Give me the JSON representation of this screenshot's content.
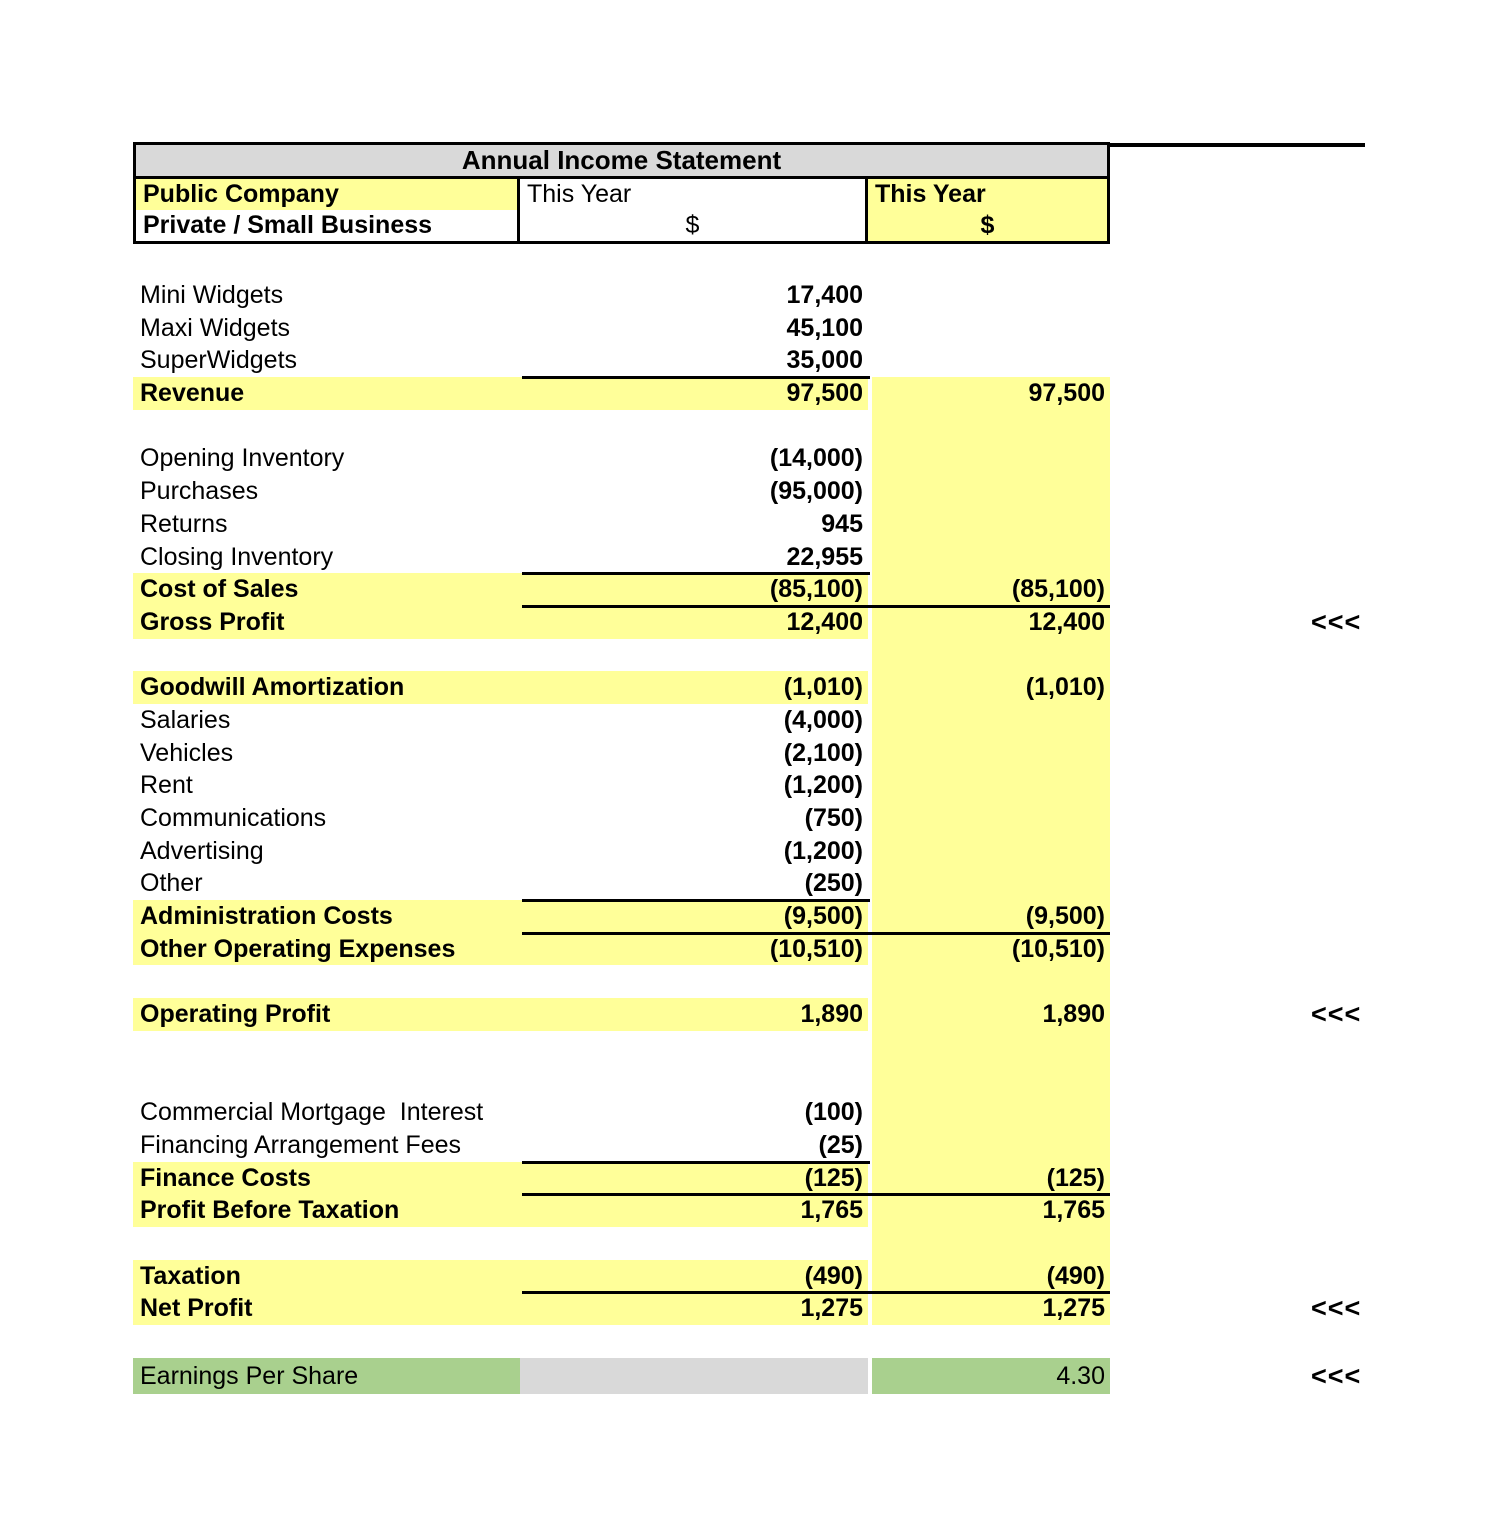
{
  "header": {
    "title": "Annual Income Statement",
    "row1": {
      "col1": "Public Company",
      "col2": "This Year",
      "col3": "This Year"
    },
    "row2": {
      "col1": "Private / Small Business",
      "col2": "$",
      "col3": "$"
    }
  },
  "marker_symbol": "<<<",
  "colors": {
    "highlight_yellow": "#FFFF99",
    "header_gray": "#D9D9D9",
    "eps_green": "#A9D08E",
    "eps_gray": "#D9D9D9",
    "rule_black": "#000000"
  },
  "rows": [
    {
      "blank": true,
      "h": 36
    },
    {
      "label": "Mini Widgets",
      "v1": "17,400",
      "v2": ""
    },
    {
      "label": "Maxi Widgets",
      "v1": "45,100",
      "v2": ""
    },
    {
      "label": "SuperWidgets",
      "v1": "35,000",
      "v2": ""
    },
    {
      "label": "Revenue",
      "v1": "97,500",
      "v2": "97,500",
      "hl": true,
      "rule": "col2"
    },
    {
      "blank": true
    },
    {
      "label": "Opening Inventory",
      "v1": "(14,000)",
      "v2": ""
    },
    {
      "label": "Purchases",
      "v1": "(95,000)",
      "v2": ""
    },
    {
      "label": "Returns",
      "v1": "945",
      "v2": ""
    },
    {
      "label": "Closing Inventory",
      "v1": "22,955",
      "v2": ""
    },
    {
      "label": "Cost of Sales",
      "v1": "(85,100)",
      "v2": "(85,100)",
      "hl": true,
      "rule": "col2"
    },
    {
      "label": "Gross Profit",
      "v1": "12,400",
      "v2": "12,400",
      "hl": true,
      "rule": "both",
      "marker": true
    },
    {
      "blank": true
    },
    {
      "label": "Goodwill Amortization",
      "v1": "(1,010)",
      "v2": "(1,010)",
      "hl": true
    },
    {
      "label": "Salaries",
      "v1": "(4,000)",
      "v2": ""
    },
    {
      "label": "Vehicles",
      "v1": "(2,100)",
      "v2": ""
    },
    {
      "label": "Rent",
      "v1": "(1,200)",
      "v2": ""
    },
    {
      "label": "Communications",
      "v1": "(750)",
      "v2": ""
    },
    {
      "label": "Advertising",
      "v1": "(1,200)",
      "v2": ""
    },
    {
      "label": "Other",
      "v1": "(250)",
      "v2": ""
    },
    {
      "label": "Administration Costs",
      "v1": "(9,500)",
      "v2": "(9,500)",
      "hl": true,
      "rule": "col2"
    },
    {
      "label": "Other Operating Expenses",
      "v1": "(10,510)",
      "v2": "(10,510)",
      "hl": true,
      "rule": "both"
    },
    {
      "blank": true
    },
    {
      "label": "Operating Profit",
      "v1": "1,890",
      "v2": "1,890",
      "hl": true,
      "marker": true
    },
    {
      "blank": true
    },
    {
      "blank": true
    },
    {
      "label": "Commercial Mortgage  Interest",
      "v1": "(100)",
      "v2": ""
    },
    {
      "label": "Financing Arrangement Fees",
      "v1": "(25)",
      "v2": ""
    },
    {
      "label": "Finance Costs",
      "v1": "(125)",
      "v2": "(125)",
      "hl": true,
      "rule": "col2"
    },
    {
      "label": "Profit Before Taxation",
      "v1": "1,765",
      "v2": "1,765",
      "hl": true,
      "rule": "both"
    },
    {
      "blank": true
    },
    {
      "label": "Taxation",
      "v1": "(490)",
      "v2": "(490)",
      "hl": true
    },
    {
      "label": "Net Profit",
      "v1": "1,275",
      "v2": "1,275",
      "hl": true,
      "rule": "both",
      "marker": true
    },
    {
      "blank": true
    },
    {
      "label": "Earnings Per Share",
      "v1": "",
      "v2": "4.30",
      "eps": true,
      "marker": true,
      "h": 36
    }
  ]
}
